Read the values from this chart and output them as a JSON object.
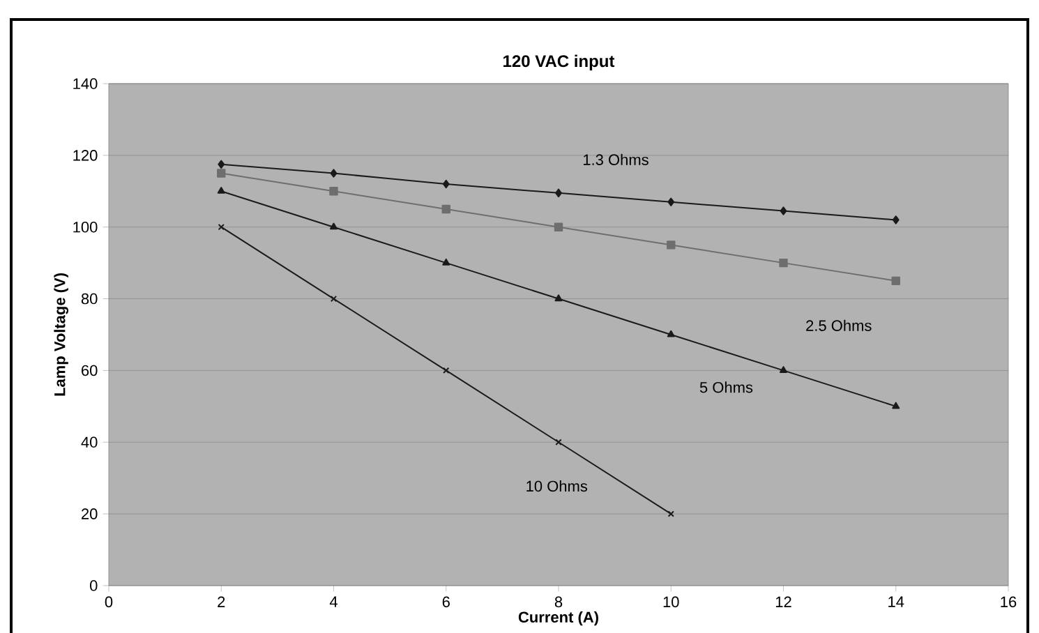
{
  "chart_data": {
    "type": "line",
    "title": "120 VAC input",
    "xlabel": "Current (A)",
    "ylabel": "Lamp Voltage (V)",
    "xlim": [
      0,
      16
    ],
    "xticks": [
      0,
      2,
      4,
      6,
      8,
      10,
      12,
      14,
      16
    ],
    "ylim": [
      0,
      140
    ],
    "yticks": [
      0,
      20,
      40,
      60,
      80,
      100,
      120,
      140
    ],
    "grid": "y",
    "legend": false,
    "series": [
      {
        "name": "1.3 Ohms",
        "color": "#1a1a1a",
        "marker": "diamond",
        "x": [
          2,
          4,
          6,
          8,
          10,
          12,
          14
        ],
        "values": [
          117.5,
          115,
          112,
          109.5,
          107,
          104.5,
          102
        ]
      },
      {
        "name": "2.5 Ohms",
        "color": "#6e6e6e",
        "marker": "square",
        "x": [
          2,
          4,
          6,
          8,
          10,
          12,
          14
        ],
        "values": [
          115,
          110,
          105,
          100,
          95,
          90,
          85
        ]
      },
      {
        "name": "5 Ohms",
        "color": "#1a1a1a",
        "marker": "triangle",
        "x": [
          2,
          4,
          6,
          8,
          10,
          12,
          14
        ],
        "values": [
          110,
          100,
          90,
          80,
          70,
          60,
          50
        ]
      },
      {
        "name": "10 Ohms",
        "color": "#1a1a1a",
        "marker": "cross",
        "x": [
          2,
          4,
          6,
          8,
          10
        ],
        "values": [
          100,
          80,
          60,
          40,
          20
        ]
      }
    ]
  }
}
